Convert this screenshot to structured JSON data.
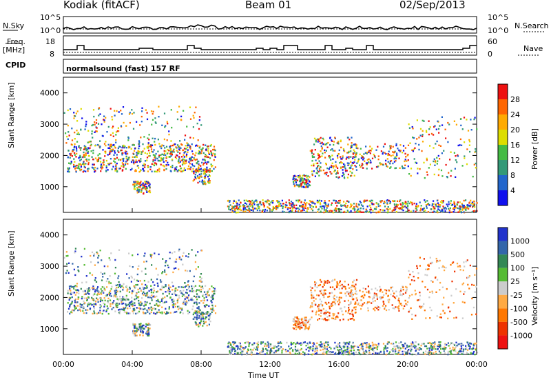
{
  "header": {
    "station": "Kodiak (fitACF)",
    "beam": "Beam 01",
    "date": "02/Sep/2013"
  },
  "nsky_panel": {
    "left_label": "N.Sky",
    "right_label": "N.Search",
    "left_ticks": [
      "10^5",
      "10^0"
    ],
    "right_ticks": [
      "10^5",
      "10^0"
    ]
  },
  "freq_panel": {
    "left_label_1": "Freq.",
    "left_label_2": "[MHz]",
    "right_label": "Nave",
    "left_ticks": [
      "18",
      "8"
    ],
    "right_ticks": [
      "60",
      "0"
    ]
  },
  "cpid": {
    "label": "CPID",
    "mode_text": "normalsound (fast) 157 RF"
  },
  "chart_data": [
    {
      "type": "heatmap",
      "name": "power",
      "ylabel": "Slant Range [km]",
      "ylim": [
        180,
        4500
      ],
      "xlim": [
        0,
        24
      ],
      "yticks": [
        "1000",
        "2000",
        "3000",
        "4000"
      ],
      "colorbar": {
        "label": "Power [dB]",
        "ticks": [
          "4",
          "8",
          "12",
          "16",
          "20",
          "24",
          "28"
        ],
        "colors": [
          "#1010ee",
          "#2266cc",
          "#339977",
          "#44bb44",
          "#dddd00",
          "#ffaa00",
          "#ff6600",
          "#ee1111"
        ]
      }
    },
    {
      "type": "heatmap",
      "name": "velocity",
      "ylabel": "Slant Range [km]",
      "ylim": [
        180,
        4500
      ],
      "xlim": [
        0,
        24
      ],
      "yticks": [
        "1000",
        "2000",
        "3000",
        "4000"
      ],
      "xticks": [
        "00:00",
        "04:00",
        "08:00",
        "12:00",
        "16:00",
        "20:00",
        "00:00"
      ],
      "xlabel": "Time UT",
      "colorbar": {
        "label": "Velocity [m s⁻¹]",
        "ticks": [
          "1000",
          "500",
          "100",
          "25",
          "-25",
          "-100",
          "-500",
          "-1000"
        ],
        "colors": [
          "#2233cc",
          "#3366aa",
          "#338855",
          "#55bb33",
          "#cccccc",
          "#ffaa44",
          "#ff7700",
          "#ee3300",
          "#ee1111"
        ]
      }
    }
  ]
}
